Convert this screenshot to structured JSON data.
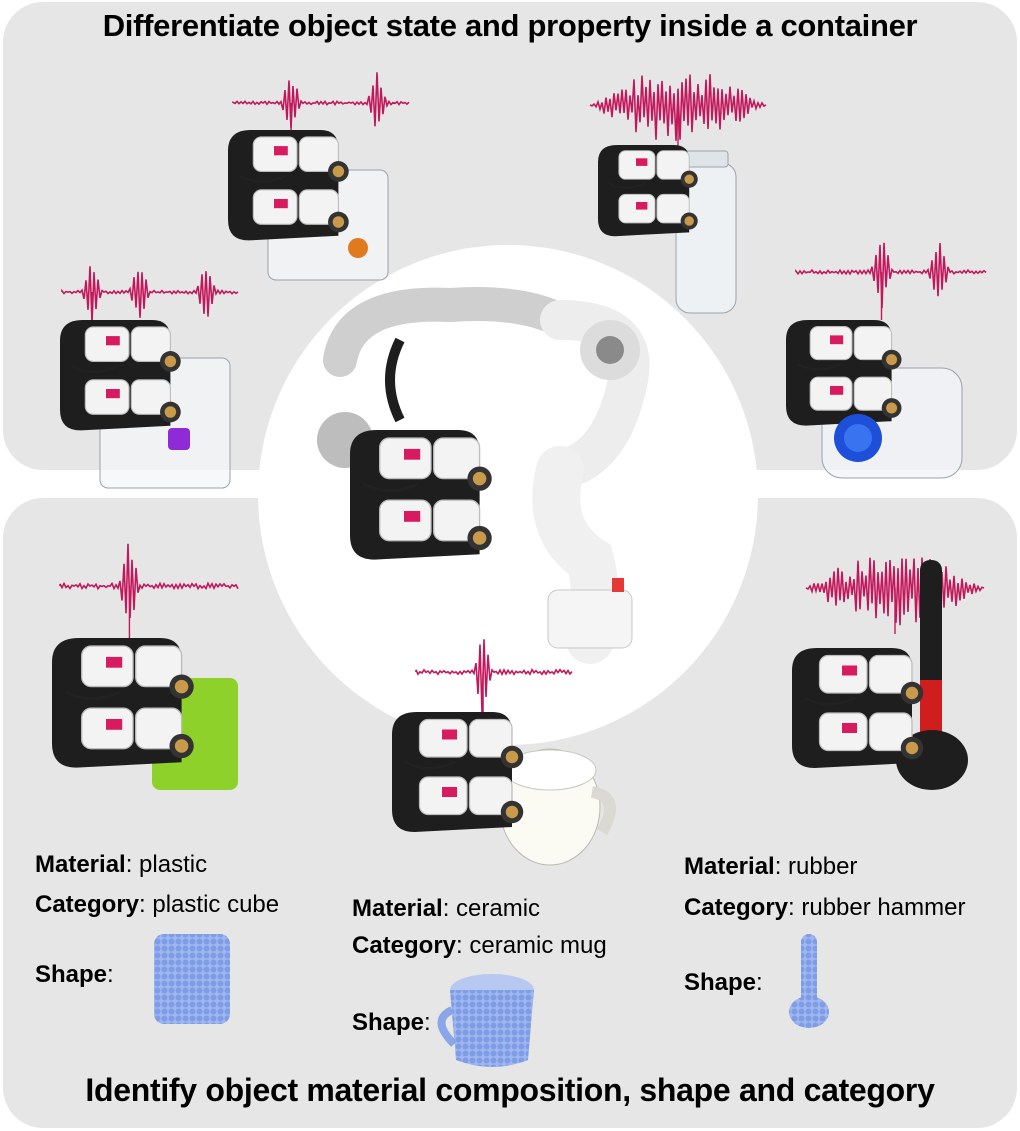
{
  "top_title": "Differentiate object state and property inside a container",
  "bottom_title": "Identify object material composition, shape and category",
  "colors": {
    "panel": "#e6e6e6",
    "waveform": "#c2185b",
    "gripper_black": "#1e1e1e",
    "gripper_white": "#f3f3f3",
    "cube_green": "#8fd12b",
    "point_cloud": "#8aa6e8",
    "hammer_red": "#d01d1d"
  },
  "icons": {
    "robot_arm": "robot-arm-icon",
    "gripper": "gripper-icon",
    "waveform": "audio-waveform-icon",
    "point_cloud": "point-cloud-icon"
  },
  "objects": [
    {
      "material_label": "Material",
      "material_value": ": plastic",
      "category_label": "Category",
      "category_value": ": plastic cube",
      "shape_label": "Shape",
      "shape_suffix": ":"
    },
    {
      "material_label": "Material",
      "material_value": ": ceramic",
      "category_label": "Category",
      "category_value": ": ceramic mug",
      "shape_label": "Shape",
      "shape_suffix": ":"
    },
    {
      "material_label": "Material",
      "material_value": ": rubber",
      "category_label": "Category",
      "category_value": ": rubber hammer",
      "shape_label": "Shape",
      "shape_suffix": ":"
    }
  ]
}
